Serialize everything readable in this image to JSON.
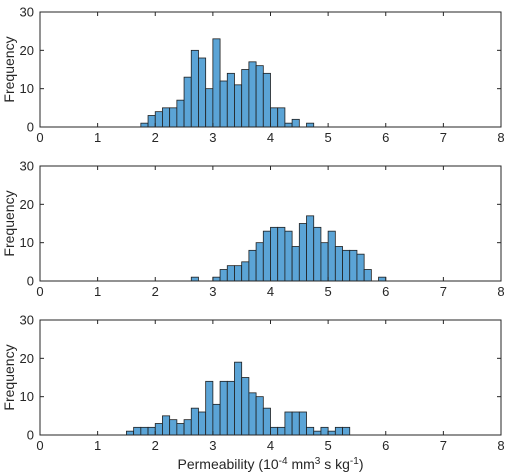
{
  "chart_data": [
    {
      "type": "bar",
      "ylabel": "Frequency",
      "xlabel": "",
      "xlim": [
        0,
        8
      ],
      "ylim": [
        0,
        30
      ],
      "xticks": [
        "0",
        "1",
        "2",
        "3",
        "4",
        "5",
        "6",
        "7",
        "8"
      ],
      "yticks": [
        "0",
        "10",
        "20",
        "30"
      ],
      "bin_width": 0.125,
      "bins": [
        {
          "x": 1.75,
          "count": 1
        },
        {
          "x": 1.875,
          "count": 3
        },
        {
          "x": 2.0,
          "count": 4
        },
        {
          "x": 2.125,
          "count": 5
        },
        {
          "x": 2.25,
          "count": 5
        },
        {
          "x": 2.375,
          "count": 7
        },
        {
          "x": 2.5,
          "count": 13
        },
        {
          "x": 2.625,
          "count": 20
        },
        {
          "x": 2.75,
          "count": 18
        },
        {
          "x": 2.875,
          "count": 10
        },
        {
          "x": 3.0,
          "count": 23
        },
        {
          "x": 3.125,
          "count": 12
        },
        {
          "x": 3.25,
          "count": 14
        },
        {
          "x": 3.375,
          "count": 11
        },
        {
          "x": 3.5,
          "count": 15
        },
        {
          "x": 3.625,
          "count": 17
        },
        {
          "x": 3.75,
          "count": 16
        },
        {
          "x": 3.875,
          "count": 14
        },
        {
          "x": 4.0,
          "count": 5
        },
        {
          "x": 4.125,
          "count": 5
        },
        {
          "x": 4.25,
          "count": 1
        },
        {
          "x": 4.375,
          "count": 2
        },
        {
          "x": 4.625,
          "count": 1
        }
      ]
    },
    {
      "type": "bar",
      "ylabel": "Frequency",
      "xlabel": "",
      "xlim": [
        0,
        8
      ],
      "ylim": [
        0,
        30
      ],
      "xticks": [
        "0",
        "1",
        "2",
        "3",
        "4",
        "5",
        "6",
        "7",
        "8"
      ],
      "yticks": [
        "0",
        "10",
        "20",
        "30"
      ],
      "bin_width": 0.125,
      "bins": [
        {
          "x": 2.625,
          "count": 1
        },
        {
          "x": 3.0,
          "count": 1
        },
        {
          "x": 3.125,
          "count": 3
        },
        {
          "x": 3.25,
          "count": 4
        },
        {
          "x": 3.375,
          "count": 4
        },
        {
          "x": 3.5,
          "count": 5
        },
        {
          "x": 3.625,
          "count": 8
        },
        {
          "x": 3.75,
          "count": 10
        },
        {
          "x": 3.875,
          "count": 13
        },
        {
          "x": 4.0,
          "count": 14
        },
        {
          "x": 4.125,
          "count": 14
        },
        {
          "x": 4.25,
          "count": 13
        },
        {
          "x": 4.375,
          "count": 9
        },
        {
          "x": 4.5,
          "count": 15
        },
        {
          "x": 4.625,
          "count": 17
        },
        {
          "x": 4.75,
          "count": 14
        },
        {
          "x": 4.875,
          "count": 10
        },
        {
          "x": 5.0,
          "count": 13
        },
        {
          "x": 5.125,
          "count": 9
        },
        {
          "x": 5.25,
          "count": 8
        },
        {
          "x": 5.375,
          "count": 8
        },
        {
          "x": 5.5,
          "count": 7
        },
        {
          "x": 5.625,
          "count": 3
        },
        {
          "x": 5.875,
          "count": 1
        }
      ]
    },
    {
      "type": "bar",
      "ylabel": "Frequency",
      "xlabel": "Permeability (10",
      "xlabel_exp1": "-4",
      "xlabel_mid": " mm",
      "xlabel_exp2": "3",
      "xlabel_mid2": " s kg",
      "xlabel_exp3": "-1",
      "xlabel_end": ")",
      "xlim": [
        0,
        8
      ],
      "ylim": [
        0,
        30
      ],
      "xticks": [
        "0",
        "1",
        "2",
        "3",
        "4",
        "5",
        "6",
        "7",
        "8"
      ],
      "yticks": [
        "0",
        "10",
        "20",
        "30"
      ],
      "bin_width": 0.125,
      "bins": [
        {
          "x": 1.5,
          "count": 1
        },
        {
          "x": 1.625,
          "count": 2
        },
        {
          "x": 1.75,
          "count": 2
        },
        {
          "x": 1.875,
          "count": 2
        },
        {
          "x": 2.0,
          "count": 3
        },
        {
          "x": 2.125,
          "count": 5
        },
        {
          "x": 2.25,
          "count": 4
        },
        {
          "x": 2.375,
          "count": 3
        },
        {
          "x": 2.5,
          "count": 4
        },
        {
          "x": 2.625,
          "count": 7
        },
        {
          "x": 2.75,
          "count": 6
        },
        {
          "x": 2.875,
          "count": 14
        },
        {
          "x": 3.0,
          "count": 8
        },
        {
          "x": 3.125,
          "count": 14
        },
        {
          "x": 3.25,
          "count": 14
        },
        {
          "x": 3.375,
          "count": 19
        },
        {
          "x": 3.5,
          "count": 15
        },
        {
          "x": 3.625,
          "count": 11
        },
        {
          "x": 3.75,
          "count": 10
        },
        {
          "x": 3.875,
          "count": 7
        },
        {
          "x": 4.0,
          "count": 2
        },
        {
          "x": 4.125,
          "count": 2
        },
        {
          "x": 4.25,
          "count": 6
        },
        {
          "x": 4.375,
          "count": 6
        },
        {
          "x": 4.5,
          "count": 6
        },
        {
          "x": 4.625,
          "count": 2
        },
        {
          "x": 4.75,
          "count": 1
        },
        {
          "x": 4.875,
          "count": 2
        },
        {
          "x": 5.0,
          "count": 1
        },
        {
          "x": 5.125,
          "count": 2
        },
        {
          "x": 5.25,
          "count": 2
        }
      ]
    }
  ],
  "style": {
    "bar_fill": "#5ba4d6",
    "bar_stroke": "#1f1f1f",
    "axis_color": "#262626",
    "text_color": "#262626",
    "background": "#ffffff"
  }
}
